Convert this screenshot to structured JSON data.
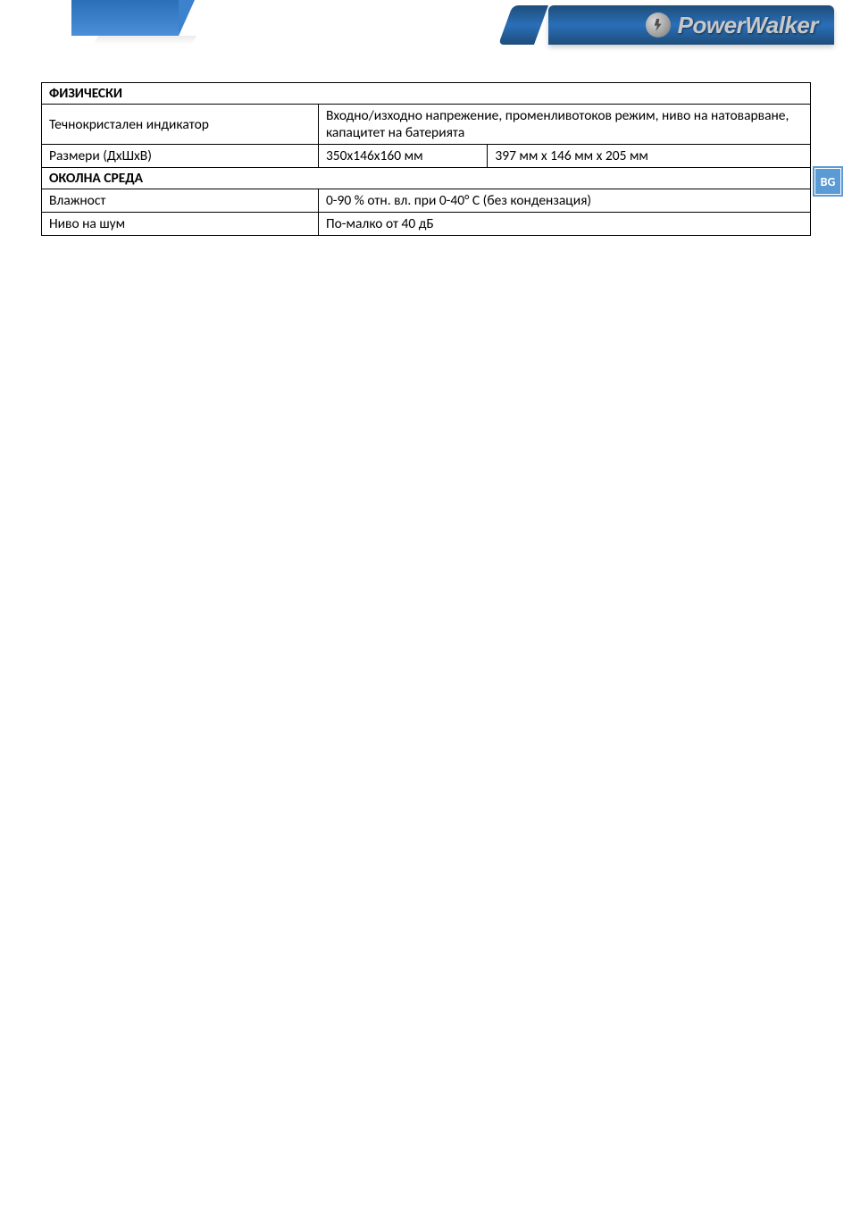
{
  "brand": {
    "name": "PowerWalker",
    "logo_bg_gradient": [
      "#1e4d7a",
      "#2a6fb8",
      "#1e4d7a"
    ],
    "text_color": "#c8c8c8"
  },
  "side_tab": {
    "label": "BG",
    "bg_color": "#5b9bd5",
    "text_color": "#ffffff"
  },
  "table": {
    "border_color": "#000000",
    "font_size": 15.5,
    "sections": [
      {
        "header": "ФИЗИЧЕСКИ",
        "rows": [
          {
            "label": "Течнокристален индикатор",
            "value_span": "Входно/изходно напрежение, променливотоков режим, ниво на натоварване, капацитет на батерията"
          },
          {
            "label": "Размери (ДхШхВ)",
            "value1": "350x146x160 мм",
            "value2": "397 мм х 146 мм х 205 мм"
          }
        ]
      },
      {
        "header": "ОКОЛНА СРЕДА",
        "rows": [
          {
            "label": "Влажност",
            "value_span": "0-90 % отн. вл. при 0-40° C (без кондензация)"
          },
          {
            "label": "Ниво на шум",
            "value_span": "По-малко от 40 дБ"
          }
        ]
      }
    ]
  }
}
